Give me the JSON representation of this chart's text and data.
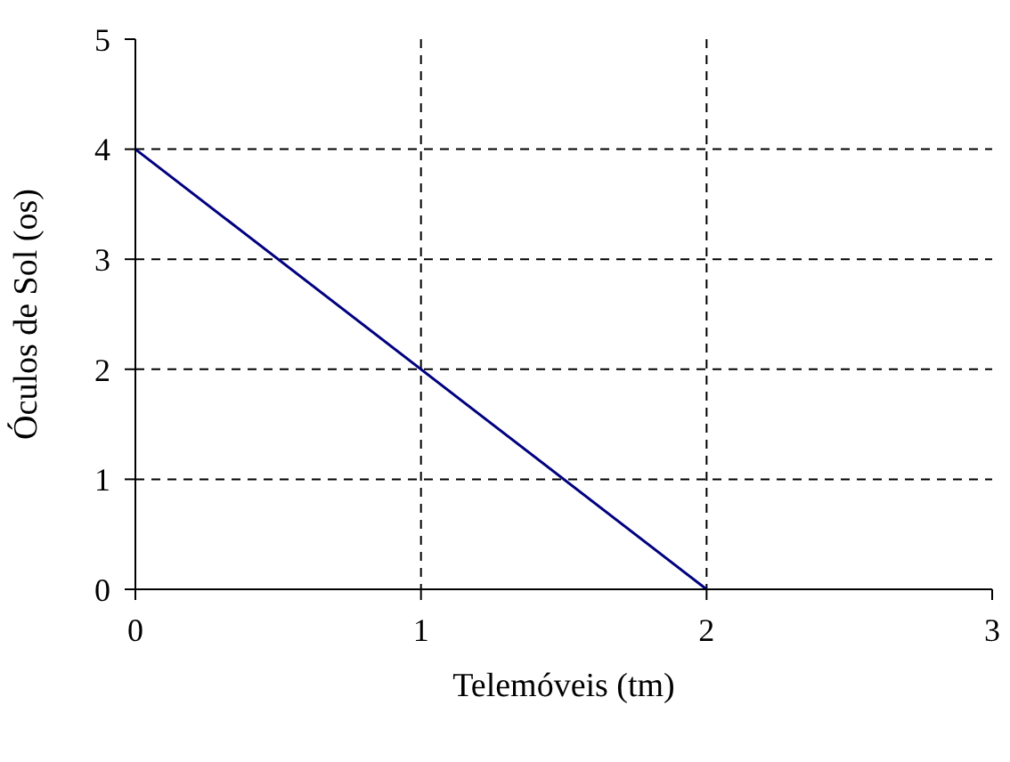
{
  "chart_data": {
    "type": "line",
    "xlabel": "Telemóveis (tm)",
    "ylabel": "Óculos de Sol (os)",
    "x": [
      0,
      2
    ],
    "series": [
      {
        "color": "#000080",
        "values": [
          4,
          0
        ]
      }
    ],
    "xlim": [
      0,
      3
    ],
    "ylim": [
      0,
      5
    ],
    "xticks": [
      0,
      1,
      2,
      3
    ],
    "yticks": [
      0,
      1,
      2,
      3,
      4,
      5
    ],
    "grid": true,
    "marker": "none",
    "line_style": "solid"
  }
}
